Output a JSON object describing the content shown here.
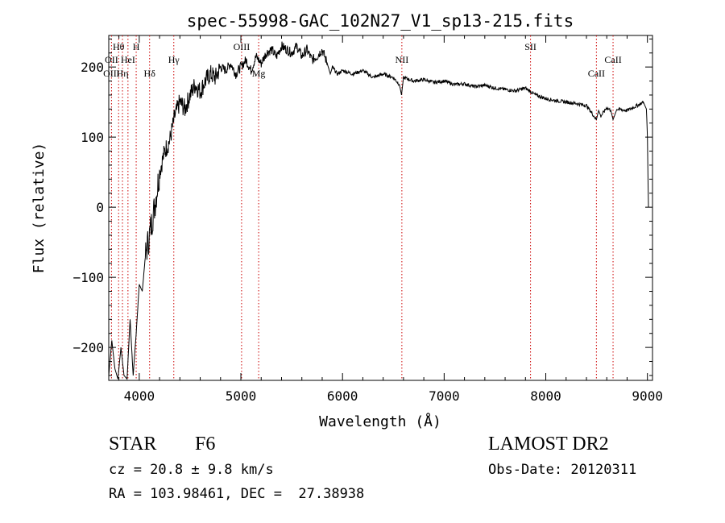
{
  "chart_data": {
    "type": "line",
    "title": "spec-55998-GAC_102N27_V1_sp13-215.fits",
    "xlabel": "Wavelength (Å)",
    "ylabel": "Flux (relative)",
    "xlim": [
      3700,
      9050
    ],
    "ylim": [
      -247,
      245
    ],
    "xticks": [
      4000,
      5000,
      6000,
      7000,
      8000,
      9000
    ],
    "xtick_labels": [
      "4000",
      "5000",
      "6000",
      "7000",
      "8000",
      "9000"
    ],
    "yticks": [
      -200,
      -100,
      0,
      100,
      200
    ],
    "ytick_labels": [
      "−200",
      "−100",
      "0",
      "100",
      "200"
    ],
    "grid": false,
    "series": [
      {
        "x": [
          3700,
          3730,
          3760,
          3790,
          3820,
          3850,
          3880,
          3910,
          3940,
          3970,
          4000,
          4030,
          4060,
          4100,
          4150,
          4200,
          4250,
          4300,
          4350,
          4400,
          4450,
          4500,
          4550,
          4600,
          4650,
          4700,
          4750,
          4800,
          4850,
          4900,
          4950,
          5000,
          5050,
          5100,
          5150,
          5200,
          5250,
          5300,
          5350,
          5400,
          5450,
          5500,
          5550,
          5600,
          5650,
          5700,
          5750,
          5800,
          5850,
          5880,
          5900,
          5950,
          6000,
          6100,
          6200,
          6300,
          6400,
          6500,
          6560,
          6580,
          6600,
          6700,
          6800,
          6900,
          7000,
          7100,
          7200,
          7300,
          7400,
          7500,
          7600,
          7700,
          7800,
          7900,
          8000,
          8100,
          8200,
          8300,
          8400,
          8450,
          8498,
          8520,
          8542,
          8600,
          8640,
          8662,
          8700,
          8800,
          8900,
          8960,
          8990,
          9000,
          9010
        ],
        "y": [
          -240,
          -190,
          -230,
          -245,
          -200,
          -240,
          -245,
          -160,
          -240,
          -180,
          -110,
          -120,
          -70,
          -40,
          0,
          50,
          80,
          95,
          130,
          150,
          140,
          160,
          175,
          165,
          180,
          190,
          185,
          200,
          195,
          205,
          190,
          200,
          210,
          195,
          215,
          205,
          220,
          225,
          215,
          230,
          225,
          220,
          230,
          215,
          225,
          210,
          215,
          225,
          205,
          190,
          200,
          190,
          195,
          190,
          195,
          185,
          190,
          185,
          175,
          160,
          185,
          180,
          182,
          178,
          180,
          175,
          176,
          172,
          174,
          170,
          168,
          166,
          170,
          160,
          155,
          152,
          150,
          148,
          145,
          135,
          125,
          138,
          130,
          142,
          138,
          125,
          140,
          138,
          145,
          150,
          140,
          100,
          0
        ]
      }
    ],
    "annotations": [
      {
        "label": "Hθ",
        "x": 3797,
        "row": "top"
      },
      {
        "label": "H",
        "x": 3970,
        "row": "top"
      },
      {
        "label": "OII",
        "x": 3727,
        "row": "mid"
      },
      {
        "label": "HeI",
        "x": 3889,
        "row": "mid"
      },
      {
        "label": "Hγ",
        "x": 4340,
        "row": "mid"
      },
      {
        "label": "OIII",
        "x": 3727,
        "row": "low"
      },
      {
        "label": "Hη",
        "x": 3835,
        "row": "low"
      },
      {
        "label": "Hδ",
        "x": 4102,
        "row": "low"
      },
      {
        "label": "OIII",
        "x": 5007,
        "row": "top"
      },
      {
        "label": "Mg",
        "x": 5175,
        "row": "low"
      },
      {
        "label": "NII",
        "x": 6584,
        "row": "mid"
      },
      {
        "label": "SII",
        "x": 7850,
        "row": "top"
      },
      {
        "label": "CaII",
        "x": 8662,
        "row": "mid"
      },
      {
        "label": "CaII",
        "x": 8498,
        "row": "low"
      }
    ],
    "line_markers_x": [
      3727,
      3797,
      3835,
      3889,
      3970,
      4102,
      4340,
      5007,
      5175,
      6584,
      7850,
      8498,
      8662
    ],
    "colors": {
      "spectrum": "#000000",
      "markers": "#cc0000"
    }
  },
  "info": {
    "class_label": "STAR",
    "subclass": "F6",
    "survey": "LAMOST DR2",
    "redshift": "cz = 20.8 ± 9.8 km/s",
    "obs_date": "Obs-Date: 20120311",
    "coords": "RA = 103.98461, DEC =  27.38938"
  }
}
